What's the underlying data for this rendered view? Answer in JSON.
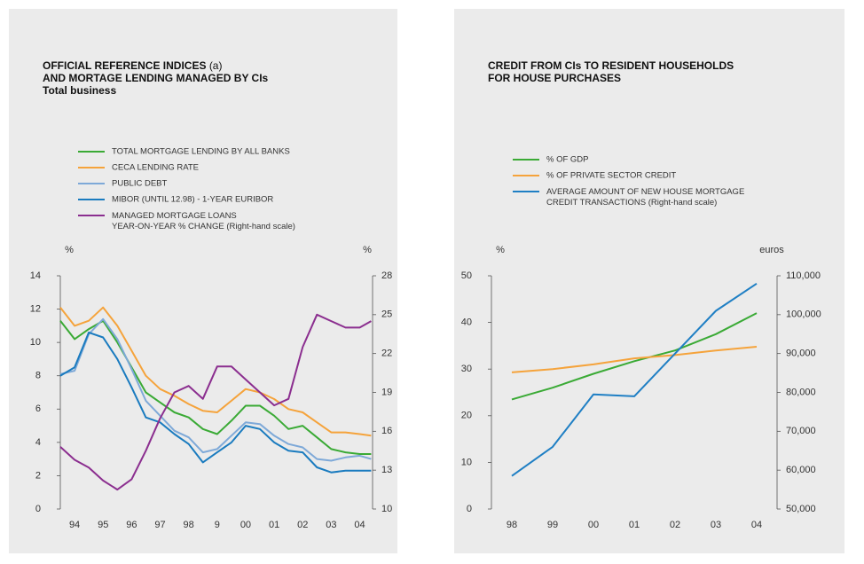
{
  "chart_data": [
    {
      "type": "line",
      "title": [
        "OFFICIAL REFERENCE INDICES",
        "AND MORTAGE LENDING MANAGED BY CIs",
        "Total business"
      ],
      "title_note": "(a)",
      "y_label": "%",
      "y2_label": "%",
      "x": [
        1994.0,
        1994.5,
        1995.0,
        1995.5,
        1996.0,
        1996.5,
        1997.0,
        1997.5,
        1998.0,
        1998.5,
        1999.0,
        1999.5,
        2000.0,
        2000.5,
        2001.0,
        2001.5,
        2002.0,
        2002.5,
        2003.0,
        2003.5,
        2004.0,
        2004.5,
        2004.9
      ],
      "xlim": [
        1994.0,
        2004.95
      ],
      "xticks": [
        {
          "value": 1994.5,
          "label": "94"
        },
        {
          "value": 1995.5,
          "label": "95"
        },
        {
          "value": 1996.5,
          "label": "96"
        },
        {
          "value": 1997.5,
          "label": "97"
        },
        {
          "value": 1998.5,
          "label": "98"
        },
        {
          "value": 1999.5,
          "label": "9"
        },
        {
          "value": 2000.5,
          "label": "00"
        },
        {
          "value": 2001.5,
          "label": "01"
        },
        {
          "value": 2002.5,
          "label": "02"
        },
        {
          "value": 2003.5,
          "label": "03"
        },
        {
          "value": 2004.5,
          "label": "04"
        }
      ],
      "ylim": [
        0,
        14
      ],
      "yticks": [
        0,
        2,
        4,
        6,
        8,
        10,
        12,
        14
      ],
      "y2lim": [
        10,
        28
      ],
      "y2ticks": [
        10,
        13,
        16,
        19,
        22,
        25,
        28
      ],
      "series": [
        {
          "name": "TOTAL MORTGAGE LENDING BY ALL BANKS",
          "color": "#3aaa35",
          "values": [
            11.3,
            10.2,
            10.8,
            11.3,
            10.0,
            8.5,
            7.0,
            6.4,
            5.8,
            5.5,
            4.8,
            4.5,
            5.3,
            6.2,
            6.2,
            5.6,
            4.8,
            5.0,
            4.3,
            3.6,
            3.4,
            3.3,
            3.3
          ]
        },
        {
          "name": "CECA  LENDING RATE",
          "color": "#f5a33b",
          "values": [
            12.1,
            11.0,
            11.3,
            12.1,
            11.0,
            9.5,
            8.0,
            7.2,
            6.8,
            6.3,
            5.9,
            5.8,
            6.5,
            7.2,
            7.0,
            6.6,
            6.0,
            5.8,
            5.2,
            4.6,
            4.6,
            4.5,
            4.4
          ]
        },
        {
          "name": "PUBLIC DEBT",
          "color": "#7ea9d8",
          "values": [
            8.1,
            8.3,
            10.5,
            11.4,
            10.2,
            8.4,
            6.5,
            5.6,
            4.7,
            4.3,
            3.4,
            3.6,
            4.4,
            5.2,
            5.1,
            4.4,
            3.9,
            3.7,
            3.0,
            2.9,
            3.1,
            3.2,
            3.0
          ]
        },
        {
          "name": "MIBOR (UNTIL 12.98) - 1-YEAR EURIBOR",
          "color": "#1a7bbf",
          "values": [
            8.0,
            8.5,
            10.6,
            10.3,
            9.0,
            7.3,
            5.5,
            5.2,
            4.5,
            3.9,
            2.8,
            3.4,
            4.0,
            5.0,
            4.8,
            4.0,
            3.5,
            3.4,
            2.5,
            2.2,
            2.3,
            2.3,
            2.3
          ]
        },
        {
          "name": "MANAGED MORTGAGE LOANS\nYEAR-ON-YEAR % CHANGE (Right-hand scale)",
          "color": "#8b2e8f",
          "axis": "y2",
          "values": [
            14.8,
            13.8,
            13.2,
            12.2,
            11.5,
            12.3,
            14.5,
            17.0,
            19.0,
            19.5,
            18.5,
            21.0,
            21.0,
            20.0,
            19.0,
            18.0,
            18.5,
            22.5,
            25.0,
            24.5,
            24.0,
            24.0,
            24.5
          ]
        }
      ]
    },
    {
      "type": "line",
      "title": [
        "CREDIT FROM CIs TO RESIDENT HOUSEHOLDS",
        "FOR HOUSE PURCHASES"
      ],
      "y_label": "%",
      "y2_label": "euros",
      "categories": [
        "98",
        "99",
        "00",
        "01",
        "02",
        "03",
        "04"
      ],
      "ylim": [
        0,
        50
      ],
      "yticks": [
        0,
        10,
        20,
        30,
        40,
        50
      ],
      "y2lim": [
        50000,
        110000
      ],
      "y2ticks": [
        {
          "value": 50000,
          "label": "50,000"
        },
        {
          "value": 60000,
          "label": "60,000"
        },
        {
          "value": 70000,
          "label": "70,000"
        },
        {
          "value": 80000,
          "label": "80,000"
        },
        {
          "value": 90000,
          "label": "90,000"
        },
        {
          "value": 100000,
          "label": "100,000"
        },
        {
          "value": 110000,
          "label": "110,000"
        }
      ],
      "series": [
        {
          "name": "% OF GDP",
          "color": "#3aaa35",
          "values": [
            23.5,
            26,
            29,
            31.7,
            34,
            37.5,
            42
          ]
        },
        {
          "name": "% OF PRIVATE SECTOR CREDIT",
          "color": "#f5a33b",
          "values": [
            29.3,
            30,
            31,
            32.3,
            33,
            34,
            34.8
          ]
        },
        {
          "name": "AVERAGE AMOUNT OF NEW HOUSE MORTGAGE\nCREDIT TRANSACTIONS (Right-hand scale)",
          "color": "#1f7fc4",
          "axis": "y2",
          "values": [
            58500,
            66000,
            79500,
            79000,
            90000,
            101000,
            108000
          ]
        }
      ]
    }
  ]
}
